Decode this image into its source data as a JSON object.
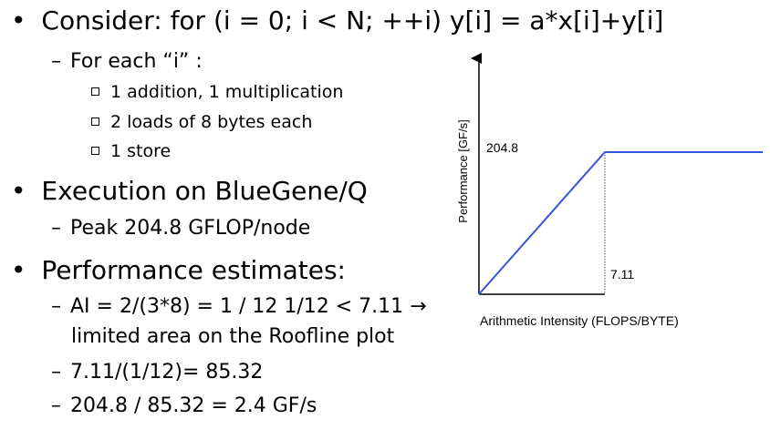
{
  "bullets": {
    "consider": {
      "marker": "•",
      "text": "Consider: for (i = 0; i < N; ++i) y[i] = a*x[i]+y[i]",
      "sub": "For each “i” :",
      "items": [
        "1 addition, 1 multiplication",
        "2 loads of 8 bytes each",
        "1 store"
      ]
    },
    "execution": {
      "marker": "•",
      "text": "Execution on BlueGene/Q",
      "sub": "Peak 204.8 GFLOP/node"
    },
    "estimates": {
      "marker": "•",
      "text": "Performance estimates:",
      "sub1_line1": "AI = 2/(3*8) = 1 / 12 1/12 < 7.11 →",
      "sub1_line2": "limited area on the Roofline plot",
      "sub2": "7.11/(1/12)= 85.32",
      "sub3": "204.8 / 85.32 = 2.4 GF/s"
    },
    "dash": "–"
  },
  "chart_data": {
    "type": "line",
    "xlabel": "Arithmetic Intensity (FLOPS/BYTE)",
    "ylabel": "Performance [GF/s]",
    "peak_label": "204.8",
    "ridge_label": "7.11",
    "peak": 204.8,
    "ridge": 7.11,
    "x": [
      0,
      7.11,
      12
    ],
    "y": [
      0,
      204.8,
      204.8
    ],
    "grid": false,
    "line_color": "#3355dd",
    "axis_color": "#000000"
  }
}
